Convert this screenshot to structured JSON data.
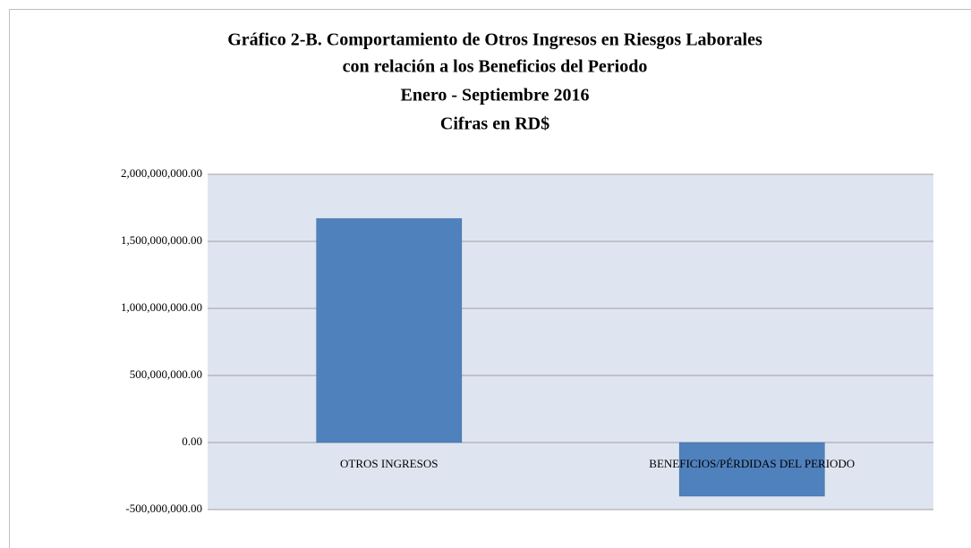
{
  "chart_data": {
    "type": "bar",
    "title": [
      "Gráfico 2-B. Comportamiento de Otros Ingresos en Riesgos Laborales",
      "con relación a los Beneficios del Periodo",
      "Enero - Septiembre 2016",
      "Cifras en RD$"
    ],
    "categories": [
      "OTROS INGRESOS",
      "BENEFICIOS/PÉRDIDAS DEL PERIODO"
    ],
    "values": [
      1670000000,
      -400000000
    ],
    "color": "#4f81bd",
    "ylim": [
      -500000000,
      2000000000
    ],
    "yticks": [
      {
        "value": -500000000,
        "label": "-500,000,000.00"
      },
      {
        "value": 0,
        "label": "0.00"
      },
      {
        "value": 500000000,
        "label": "500,000,000.00"
      },
      {
        "value": 1000000000,
        "label": "1,000,000,000.00"
      },
      {
        "value": 1500000000,
        "label": "1,500,000,000.00"
      },
      {
        "value": 2000000000,
        "label": "2,000,000,000.00"
      }
    ],
    "grid": true
  }
}
